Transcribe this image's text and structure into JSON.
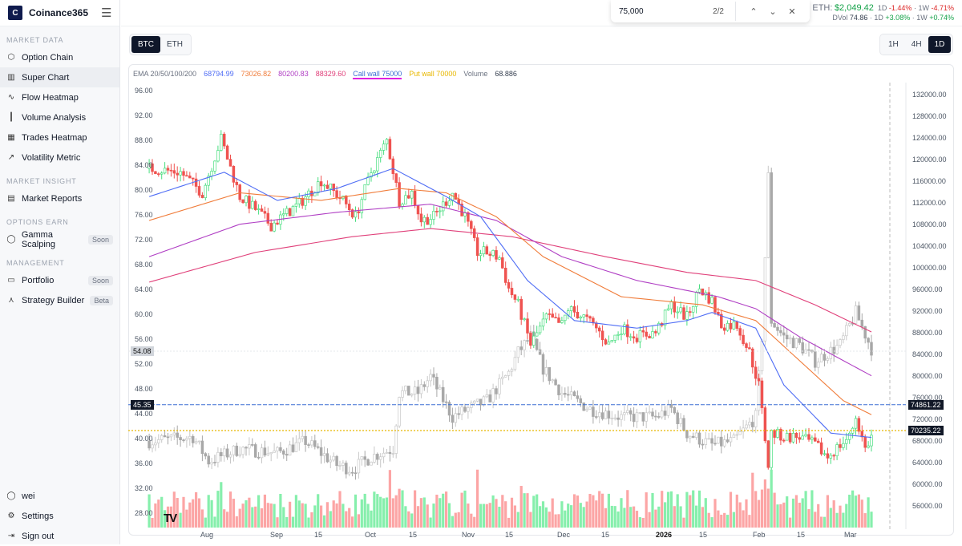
{
  "app": {
    "name": "Coinance365",
    "logo_text": "C"
  },
  "sidebar": {
    "sections": [
      {
        "title": "MARKET DATA",
        "items": [
          {
            "label": "Option Chain",
            "icon": "cube-icon"
          },
          {
            "label": "Super Chart",
            "icon": "chart-icon",
            "active": true
          },
          {
            "label": "Flow Heatmap",
            "icon": "pulse-icon"
          },
          {
            "label": "Volume Analysis",
            "icon": "bars-icon"
          },
          {
            "label": "Trades Heatmap",
            "icon": "grid-icon"
          },
          {
            "label": "Volatility Metric",
            "icon": "trend-icon"
          }
        ]
      },
      {
        "title": "MARKET INSIGHT",
        "items": [
          {
            "label": "Market Reports",
            "icon": "document-icon"
          }
        ]
      },
      {
        "title": "OPTIONS EARN",
        "items": [
          {
            "label": "Gamma Scalping",
            "icon": "circle-icon",
            "badge": "Soon"
          }
        ]
      },
      {
        "title": "MANAGEMENT",
        "items": [
          {
            "label": "Portfolio",
            "icon": "folder-icon",
            "badge": "Soon"
          },
          {
            "label": "Strategy Builder",
            "icon": "compass-icon",
            "badge": "Beta"
          }
        ]
      }
    ],
    "footer": [
      {
        "label": "wei",
        "icon": "user-icon"
      },
      {
        "label": "Settings",
        "icon": "gear-icon"
      },
      {
        "label": "Sign out",
        "icon": "logout-icon"
      }
    ]
  },
  "search": {
    "value": "75,000",
    "count": "2/2"
  },
  "ticker": {
    "label": "ETH:",
    "price": "$2,049.42",
    "d_label": "1D",
    "d_change": "-1.44%",
    "w_label": "1W",
    "w_change": "-4.71%",
    "dvol_label": "DVol",
    "dvol": "74.86",
    "dvol_d": "+3.08%",
    "dvol_w": "+0.74%"
  },
  "asset_tabs": [
    "BTC",
    "ETH"
  ],
  "asset_selected": "BTC",
  "timeframes": [
    "1H",
    "4H",
    "1D"
  ],
  "timeframe_selected": "1D",
  "legend": {
    "ema_label": "EMA 20/50/100/200",
    "ema20": "68794.99",
    "ema50": "73026.82",
    "ema100": "80200.83",
    "ema200": "88329.60",
    "call_wall": "Call wall 75000",
    "put_wall": "Put wall 70000",
    "volume_label": "Volume",
    "volume": "68.886"
  },
  "colors": {
    "ema20": "#4f6df5",
    "ema50": "#f07c3a",
    "ema100": "#b03fc4",
    "ema200": "#e0407a",
    "call_wall": "#3b6fd4",
    "put_wall": "#e8b800",
    "up": "#4ade80",
    "down": "#f87171",
    "dvol": "#bdbdbd"
  },
  "chart_data": {
    "type": "candlestick",
    "x_ticks": [
      "Aug",
      "Sep",
      "15",
      "Oct",
      "15",
      "Nov",
      "15",
      "Dec",
      "15",
      "2026",
      "15",
      "Feb",
      "15",
      "Mar"
    ],
    "y_right_ticks": [
      "132000.00",
      "128000.00",
      "124000.00",
      "120000.00",
      "116000.00",
      "112000.00",
      "108000.00",
      "104000.00",
      "100000.00",
      "96000.00",
      "92000.00",
      "88000.00",
      "84000.00",
      "80000.00",
      "76000.00",
      "72000.00",
      "68000.00",
      "64000.00",
      "60000.00",
      "56000.00"
    ],
    "y_left_ticks": [
      "96.00",
      "92.00",
      "88.00",
      "84.00",
      "80.00",
      "76.00",
      "72.00",
      "68.00",
      "64.00",
      "60.00",
      "56.00",
      "52.00",
      "48.00",
      "44.00",
      "40.00",
      "36.00",
      "32.00",
      "28.00"
    ],
    "price_range": [
      52000,
      134000
    ],
    "dvol_range": [
      26,
      98
    ],
    "price_tags": {
      "call_wall": "74861.22",
      "put_wall": "70235.22"
    },
    "dvol_tags": {
      "current": "54.08",
      "call_wall_level": "45.35"
    },
    "btc_close": [
      [
        "2025-07-22",
        118500
      ],
      [
        "2025-08-01",
        117800
      ],
      [
        "2025-08-08",
        114000
      ],
      [
        "2025-08-14",
        124000
      ],
      [
        "2025-08-20",
        113300
      ],
      [
        "2025-08-25",
        111000
      ],
      [
        "2025-08-30",
        108000
      ],
      [
        "2025-09-08",
        112000
      ],
      [
        "2025-09-15",
        116300
      ],
      [
        "2025-09-22",
        112600
      ],
      [
        "2025-09-26",
        109600
      ],
      [
        "2025-10-01",
        117800
      ],
      [
        "2025-10-06",
        123700
      ],
      [
        "2025-10-10",
        112600
      ],
      [
        "2025-10-14",
        114000
      ],
      [
        "2025-10-17",
        108900
      ],
      [
        "2025-10-21",
        109600
      ],
      [
        "2025-10-27",
        114000
      ],
      [
        "2025-10-31",
        109600
      ],
      [
        "2025-11-04",
        103000
      ],
      [
        "2025-11-07",
        103000
      ],
      [
        "2025-11-11",
        102000
      ],
      [
        "2025-11-14",
        96300
      ],
      [
        "2025-11-17",
        93300
      ],
      [
        "2025-11-21",
        86000
      ],
      [
        "2025-11-26",
        91000
      ],
      [
        "2025-12-01",
        89600
      ],
      [
        "2025-12-03",
        92600
      ],
      [
        "2025-12-08",
        91000
      ],
      [
        "2025-12-12",
        89000
      ],
      [
        "2025-12-16",
        86000
      ],
      [
        "2025-12-20",
        89000
      ],
      [
        "2025-12-25",
        87500
      ],
      [
        "2025-12-31",
        88200
      ],
      [
        "2026-01-05",
        93300
      ],
      [
        "2026-01-10",
        91000
      ],
      [
        "2026-01-14",
        96300
      ],
      [
        "2026-01-18",
        94000
      ],
      [
        "2026-01-21",
        89600
      ],
      [
        "2026-01-26",
        89600
      ],
      [
        "2026-01-30",
        84500
      ],
      [
        "2026-02-02",
        78500
      ],
      [
        "2026-02-05",
        63700
      ],
      [
        "2026-02-06",
        69600
      ],
      [
        "2026-02-10",
        68900
      ],
      [
        "2026-02-15",
        68900
      ],
      [
        "2026-02-20",
        67400
      ],
      [
        "2026-02-24",
        65200
      ],
      [
        "2026-02-28",
        67400
      ],
      [
        "2026-03-03",
        68900
      ],
      [
        "2026-03-05",
        72600
      ],
      [
        "2026-03-08",
        66700
      ],
      [
        "2026-03-10",
        68900
      ]
    ],
    "dvol_close": [
      [
        "2025-07-22",
        39.7
      ],
      [
        "2025-08-05",
        40.4
      ],
      [
        "2025-08-10",
        36.5
      ],
      [
        "2025-08-20",
        38.5
      ],
      [
        "2025-09-01",
        37.8
      ],
      [
        "2025-09-10",
        39.7
      ],
      [
        "2025-09-20",
        35.9
      ],
      [
        "2025-09-25",
        35.2
      ],
      [
        "2025-10-01",
        37.2
      ],
      [
        "2025-10-08",
        38.5
      ],
      [
        "2025-10-10",
        47.5
      ],
      [
        "2025-10-16",
        47.5
      ],
      [
        "2025-10-20",
        50.1
      ],
      [
        "2025-10-27",
        43.6
      ],
      [
        "2025-11-01",
        44.9
      ],
      [
        "2025-11-07",
        46.2
      ],
      [
        "2025-11-14",
        50.7
      ],
      [
        "2025-11-17",
        54
      ],
      [
        "2025-11-21",
        56.5
      ],
      [
        "2025-11-25",
        51.4
      ],
      [
        "2025-12-01",
        47.5
      ],
      [
        "2025-12-10",
        44.9
      ],
      [
        "2025-12-20",
        43.6
      ],
      [
        "2025-12-31",
        43.6
      ],
      [
        "2026-01-05",
        44.9
      ],
      [
        "2026-01-10",
        41
      ],
      [
        "2026-01-18",
        39.1
      ],
      [
        "2026-01-25",
        39.7
      ],
      [
        "2026-02-01",
        43.6
      ],
      [
        "2026-02-03",
        56.5
      ],
      [
        "2026-02-05",
        82.3
      ],
      [
        "2026-02-06",
        59.1
      ],
      [
        "2026-02-10",
        56.5
      ],
      [
        "2026-02-15",
        55.2
      ],
      [
        "2026-02-20",
        52.6
      ],
      [
        "2026-02-28",
        55.2
      ],
      [
        "2026-03-05",
        60.4
      ],
      [
        "2026-03-10",
        54.6
      ]
    ],
    "ema20": [
      [
        "2025-07-22",
        113300
      ],
      [
        "2025-08-15",
        117800
      ],
      [
        "2025-09-01",
        112600
      ],
      [
        "2025-09-20",
        114800
      ],
      [
        "2025-10-08",
        118500
      ],
      [
        "2025-10-25",
        113300
      ],
      [
        "2025-11-05",
        109600
      ],
      [
        "2025-11-20",
        97800
      ],
      [
        "2025-12-05",
        90400
      ],
      [
        "2025-12-25",
        89000
      ],
      [
        "2026-01-10",
        90400
      ],
      [
        "2026-01-18",
        91900
      ],
      [
        "2026-02-01",
        89000
      ],
      [
        "2026-02-10",
        78500
      ],
      [
        "2026-02-25",
        69600
      ],
      [
        "2026-03-10",
        68800
      ]
    ],
    "ema50": [
      [
        "2025-07-22",
        108900
      ],
      [
        "2025-08-20",
        114000
      ],
      [
        "2025-09-15",
        112600
      ],
      [
        "2025-10-10",
        114800
      ],
      [
        "2025-10-25",
        114000
      ],
      [
        "2025-11-10",
        109600
      ],
      [
        "2025-11-25",
        102200
      ],
      [
        "2025-12-20",
        94800
      ],
      [
        "2026-01-15",
        93300
      ],
      [
        "2026-02-01",
        90400
      ],
      [
        "2026-02-15",
        83000
      ],
      [
        "2026-03-01",
        75600
      ],
      [
        "2026-03-10",
        73000
      ]
    ],
    "ema100": [
      [
        "2025-07-22",
        102200
      ],
      [
        "2025-08-20",
        108200
      ],
      [
        "2025-09-20",
        110400
      ],
      [
        "2025-10-20",
        111900
      ],
      [
        "2025-11-10",
        108900
      ],
      [
        "2025-12-01",
        102200
      ],
      [
        "2025-12-25",
        97800
      ],
      [
        "2026-01-20",
        94800
      ],
      [
        "2026-02-01",
        92600
      ],
      [
        "2026-02-15",
        87400
      ],
      [
        "2026-03-01",
        83000
      ],
      [
        "2026-03-10",
        80200
      ]
    ],
    "ema200": [
      [
        "2025-07-22",
        97500
      ],
      [
        "2025-08-25",
        103000
      ],
      [
        "2025-09-25",
        105900
      ],
      [
        "2025-10-20",
        107400
      ],
      [
        "2025-11-15",
        105900
      ],
      [
        "2025-12-15",
        102200
      ],
      [
        "2026-01-10",
        99300
      ],
      [
        "2026-02-01",
        97800
      ],
      [
        "2026-02-20",
        93300
      ],
      [
        "2026-03-10",
        88300
      ]
    ],
    "call_wall": 75000,
    "put_wall": 70000
  }
}
